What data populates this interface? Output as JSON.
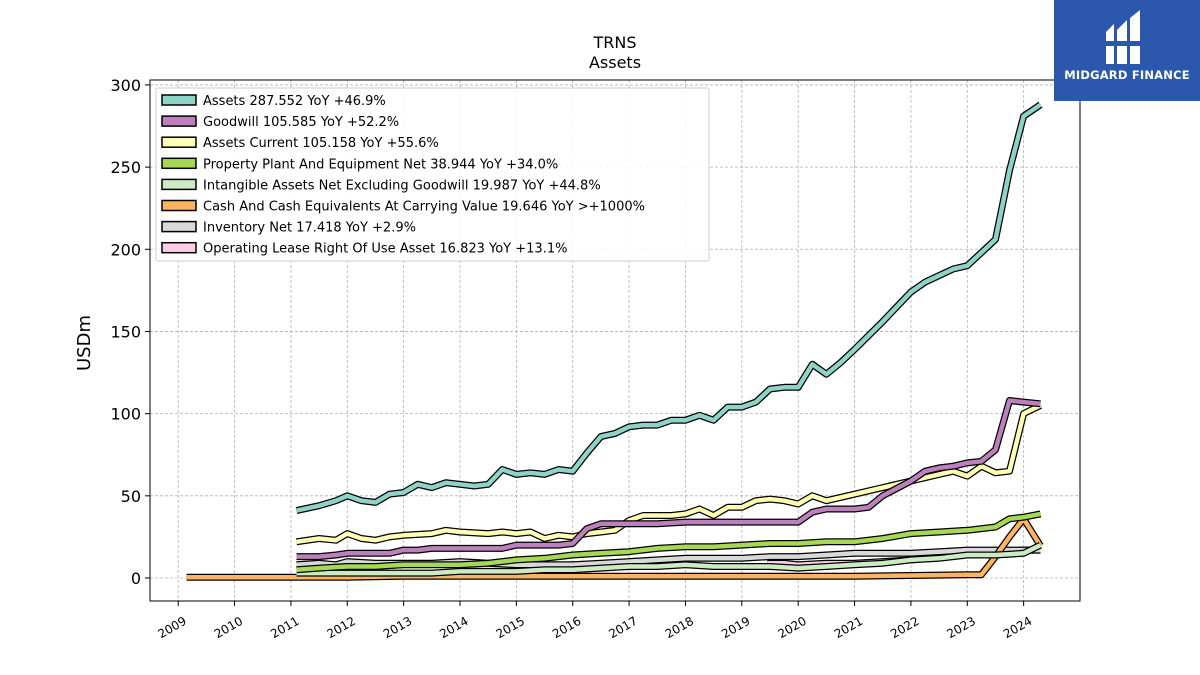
{
  "chart_data": {
    "type": "line",
    "title": "TRNS",
    "subtitle": "Assets",
    "ylabel": "USDm",
    "xlabel": "",
    "xlim": [
      2008.5,
      2025.0
    ],
    "ylim": [
      -14,
      303
    ],
    "y_ticks": [
      0,
      50,
      100,
      150,
      200,
      250,
      300
    ],
    "x_ticks": [
      2009,
      2010,
      2011,
      2012,
      2013,
      2014,
      2015,
      2016,
      2017,
      2018,
      2019,
      2020,
      2021,
      2022,
      2023,
      2024
    ],
    "grid": true,
    "legend_position": "upper-left",
    "series": [
      {
        "name": "Assets",
        "legend_value": "287.552 YoY +46.9%",
        "color": "#8dd3c7",
        "x": [
          2011.1,
          2011.5,
          2011.8,
          2012.0,
          2012.25,
          2012.5,
          2012.75,
          2013.0,
          2013.25,
          2013.5,
          2013.75,
          2014.0,
          2014.25,
          2014.5,
          2014.75,
          2015.0,
          2015.25,
          2015.5,
          2015.75,
          2016.0,
          2016.25,
          2016.5,
          2016.75,
          2017.0,
          2017.25,
          2017.5,
          2017.75,
          2018.0,
          2018.25,
          2018.5,
          2018.75,
          2019.0,
          2019.25,
          2019.5,
          2019.75,
          2020.0,
          2020.25,
          2020.5,
          2020.75,
          2021.0,
          2021.5,
          2022.0,
          2022.25,
          2022.5,
          2022.75,
          2023.0,
          2023.25,
          2023.5,
          2023.75,
          2024.0,
          2024.3
        ],
        "y": [
          41,
          44,
          47,
          50,
          47,
          46,
          51,
          52,
          57,
          55,
          58,
          57,
          56,
          57,
          66,
          63,
          64,
          63,
          66,
          65,
          76,
          86,
          88,
          92,
          93,
          93,
          96,
          96,
          99,
          96,
          104,
          104,
          107,
          115,
          116,
          116,
          130,
          124,
          131,
          139,
          156,
          174,
          180,
          184,
          188,
          190,
          198,
          206,
          248,
          281,
          288
        ]
      },
      {
        "name": "Goodwill",
        "legend_value": "105.585 YoY +52.2%",
        "color": "#bc80bd",
        "x": [
          2011.1,
          2011.5,
          2011.8,
          2012.0,
          2012.5,
          2012.75,
          2013.0,
          2013.25,
          2013.5,
          2014.0,
          2014.5,
          2014.75,
          2015.0,
          2015.5,
          2015.75,
          2016.0,
          2016.25,
          2016.5,
          2016.75,
          2017.0,
          2017.5,
          2018.0,
          2018.5,
          2019.0,
          2019.5,
          2020.0,
          2020.25,
          2020.5,
          2020.75,
          2021.0,
          2021.25,
          2021.5,
          2022.0,
          2022.25,
          2022.5,
          2022.75,
          2023.0,
          2023.25,
          2023.5,
          2023.75,
          2024.0,
          2024.3
        ],
        "y": [
          13,
          13,
          14,
          15,
          15,
          15,
          17,
          17,
          18,
          18,
          18,
          18,
          20,
          20,
          20,
          21,
          30,
          33,
          33,
          33,
          33,
          34,
          34,
          34,
          34,
          34,
          40,
          42,
          42,
          42,
          43,
          50,
          59,
          65,
          67,
          68,
          70,
          71,
          78,
          108,
          107,
          106
        ]
      },
      {
        "name": "Assets Current",
        "legend_value": "105.158 YoY +55.6%",
        "color": "#ffffb3",
        "x": [
          2011.1,
          2011.5,
          2011.8,
          2012.0,
          2012.25,
          2012.5,
          2012.75,
          2013.0,
          2013.5,
          2013.75,
          2014.0,
          2014.5,
          2014.75,
          2015.0,
          2015.25,
          2015.5,
          2015.75,
          2016.0,
          2016.25,
          2016.5,
          2016.75,
          2017.0,
          2017.25,
          2017.5,
          2017.75,
          2018.0,
          2018.25,
          2018.5,
          2018.75,
          2019.0,
          2019.25,
          2019.5,
          2019.75,
          2020.0,
          2020.25,
          2020.5,
          2021.0,
          2021.5,
          2022.0,
          2022.25,
          2022.5,
          2022.75,
          2023.0,
          2023.25,
          2023.5,
          2023.75,
          2024.0,
          2024.3
        ],
        "y": [
          22,
          24,
          23,
          27,
          24,
          23,
          25,
          26,
          27,
          29,
          28,
          27,
          28,
          27,
          28,
          24,
          26,
          25,
          27,
          28,
          29,
          35,
          38,
          38,
          38,
          39,
          42,
          38,
          43,
          43,
          47,
          48,
          47,
          45,
          50,
          47,
          51,
          55,
          59,
          61,
          63,
          65,
          62,
          68,
          64,
          65,
          100,
          105
        ]
      },
      {
        "name": "Property Plant And Equipment Net",
        "legend_value": "38.944 YoY +34.0%",
        "color": "#a6d854",
        "x": [
          2011.1,
          2011.5,
          2012.0,
          2012.5,
          2013.0,
          2013.5,
          2014.0,
          2014.5,
          2015.0,
          2015.5,
          2016.0,
          2016.5,
          2017.0,
          2017.5,
          2018.0,
          2018.5,
          2019.0,
          2019.5,
          2020.0,
          2020.5,
          2021.0,
          2021.5,
          2022.0,
          2022.5,
          2023.0,
          2023.5,
          2023.75,
          2024.0,
          2024.3
        ],
        "y": [
          5,
          6,
          7,
          7,
          8,
          8,
          8,
          9,
          11,
          12,
          14,
          15,
          16,
          18,
          19,
          19,
          20,
          21,
          21,
          22,
          22,
          24,
          27,
          28,
          29,
          31,
          36,
          37,
          39
        ]
      },
      {
        "name": "Intangible Assets Net Excluding Goodwill",
        "legend_value": "19.987 YoY +44.8%",
        "color": "#ccebc5",
        "x": [
          2011.1,
          2011.5,
          2012.0,
          2012.5,
          2013.0,
          2013.5,
          2014.0,
          2014.5,
          2015.0,
          2015.5,
          2016.0,
          2016.5,
          2017.0,
          2017.5,
          2018.0,
          2018.5,
          2019.0,
          2019.5,
          2020.0,
          2020.5,
          2021.0,
          2021.5,
          2022.0,
          2022.5,
          2023.0,
          2023.5,
          2024.0,
          2024.3
        ],
        "y": [
          3,
          3,
          3,
          3,
          3,
          3,
          4,
          4,
          4,
          5,
          5,
          6,
          7,
          7,
          8,
          7,
          7,
          7,
          6,
          7,
          8,
          9,
          11,
          12,
          14,
          14,
          15,
          20
        ]
      },
      {
        "name": "Cash And Cash Equivalents At Carrying Value",
        "legend_value": "19.646 YoY >+1000%",
        "color": "#fdb462",
        "x": [
          2009.15,
          2010.0,
          2011.0,
          2012.0,
          2013.0,
          2014.0,
          2015.0,
          2016.0,
          2017.0,
          2018.0,
          2019.0,
          2020.0,
          2021.0,
          2022.0,
          2023.0,
          2023.25,
          2023.5,
          2023.75,
          2024.0,
          2024.3
        ],
        "y": [
          0.5,
          0.5,
          0.5,
          0.5,
          1,
          1,
          1,
          1,
          1,
          1,
          1,
          1,
          1,
          1.5,
          2,
          2,
          13,
          25,
          36,
          19.6
        ]
      },
      {
        "name": "Inventory Net",
        "legend_value": "17.418 YoY +2.9%",
        "color": "#d9d9d9",
        "x": [
          2011.1,
          2011.5,
          2011.8,
          2012.0,
          2012.5,
          2013.0,
          2013.5,
          2014.0,
          2014.5,
          2015.0,
          2015.5,
          2016.0,
          2016.5,
          2017.0,
          2017.5,
          2018.0,
          2018.5,
          2019.0,
          2019.5,
          2020.0,
          2020.5,
          2021.0,
          2021.5,
          2022.0,
          2022.5,
          2023.0,
          2023.5,
          2024.0,
          2024.3
        ],
        "y": [
          8,
          9,
          8,
          10,
          9,
          9,
          9,
          10,
          9,
          8,
          8,
          8,
          9,
          10,
          11,
          12,
          12,
          12,
          13,
          13,
          14,
          15,
          15,
          15,
          16,
          17,
          17,
          17,
          17
        ]
      },
      {
        "name": "Operating Lease Right Of Use Asset",
        "legend_value": "16.823 YoY +13.1%",
        "color": "#fccde5",
        "x": [
          2019.45,
          2019.75,
          2020.0,
          2020.5,
          2021.0,
          2021.5,
          2022.0,
          2022.5,
          2022.75,
          2023.0,
          2023.5,
          2024.0,
          2024.3
        ],
        "y": [
          9,
          9,
          8,
          9,
          9,
          10,
          11,
          13,
          15,
          15,
          16,
          17,
          17
        ]
      }
    ]
  },
  "logo": {
    "brand": "MIDGARD FINANCE",
    "background": "#2b58ad"
  }
}
